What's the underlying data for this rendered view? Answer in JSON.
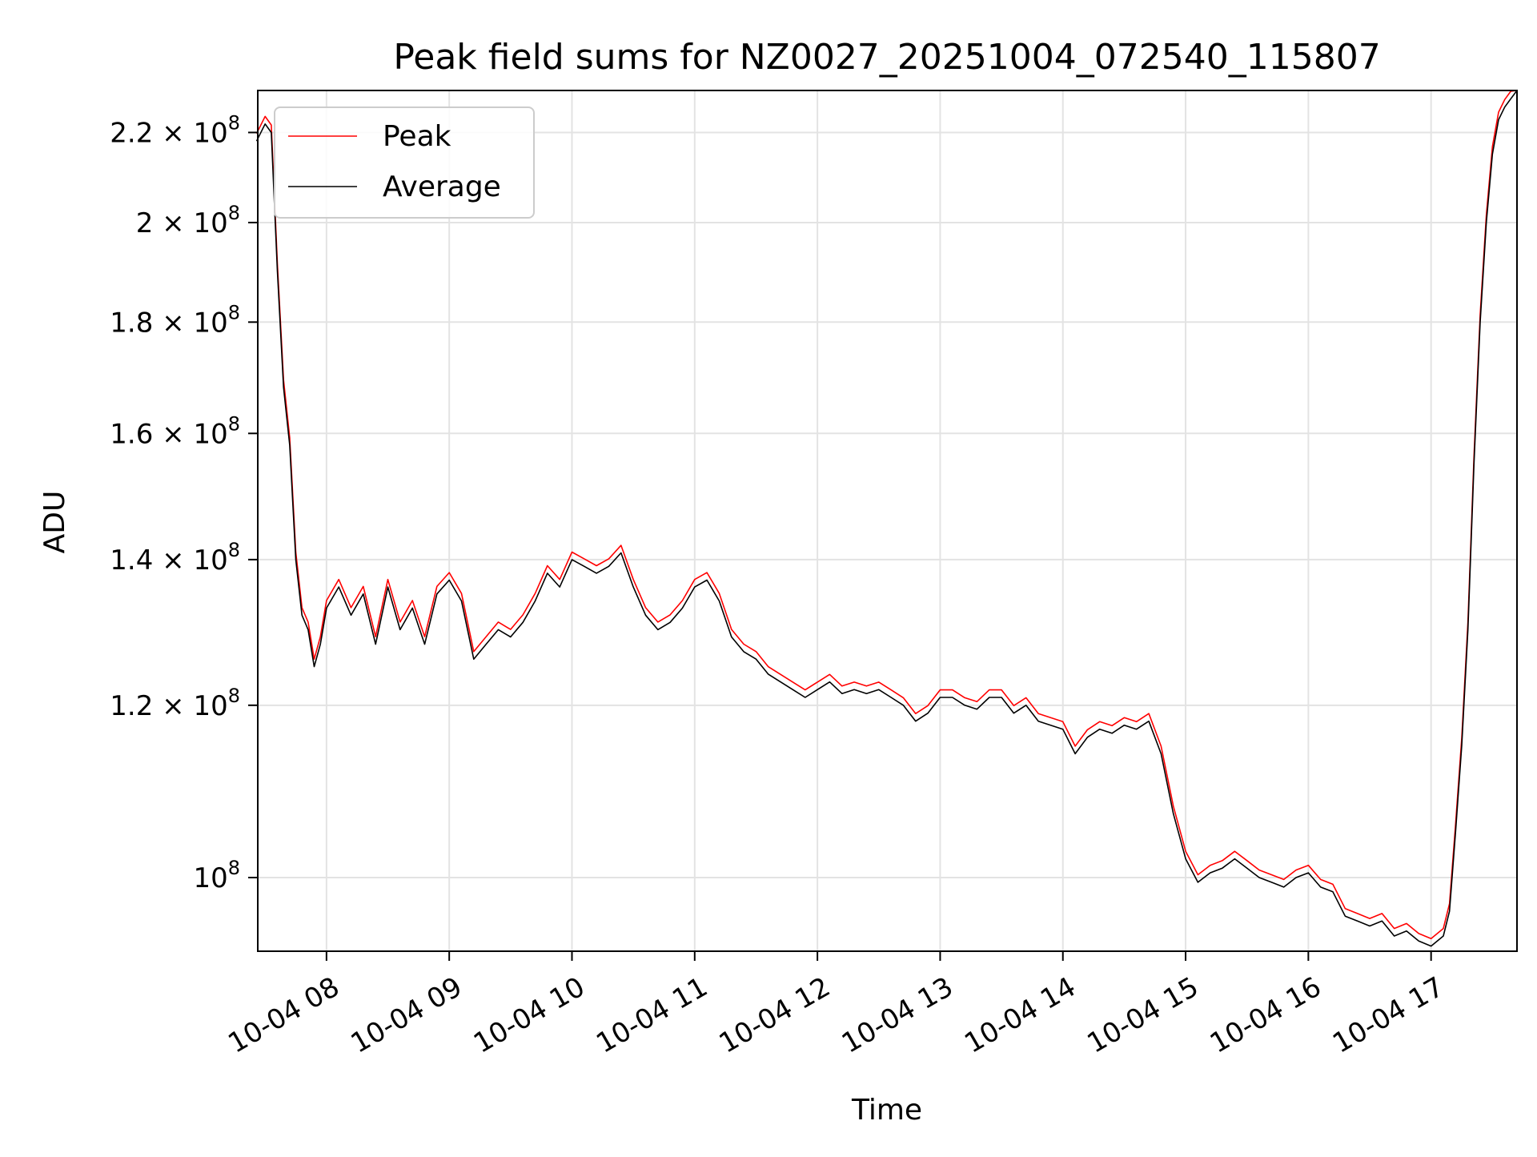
{
  "chart_data": {
    "type": "line",
    "title": "Peak field sums for NZ0027_20251004_072540_115807",
    "xlabel": "Time",
    "ylabel": "ADU",
    "yscale": "log",
    "xlim_hours": [
      7.44,
      17.7
    ],
    "ylim": [
      92500000,
      230000000
    ],
    "grid": true,
    "legend_position": "upper-left",
    "x_ticks": [
      {
        "hour": 8,
        "label": "10-04 08"
      },
      {
        "hour": 9,
        "label": "10-04 09"
      },
      {
        "hour": 10,
        "label": "10-04 10"
      },
      {
        "hour": 11,
        "label": "10-04 11"
      },
      {
        "hour": 12,
        "label": "10-04 12"
      },
      {
        "hour": 13,
        "label": "10-04 13"
      },
      {
        "hour": 14,
        "label": "10-04 14"
      },
      {
        "hour": 15,
        "label": "10-04 15"
      },
      {
        "hour": 16,
        "label": "10-04 16"
      },
      {
        "hour": 17,
        "label": "10-04 17"
      }
    ],
    "y_ticks": [
      {
        "value": 100000000,
        "mant": "",
        "exp": "8"
      },
      {
        "value": 120000000,
        "mant": "1.2",
        "exp": "8"
      },
      {
        "value": 140000000,
        "mant": "1.4",
        "exp": "8"
      },
      {
        "value": 160000000,
        "mant": "1.6",
        "exp": "8"
      },
      {
        "value": 180000000,
        "mant": "1.8",
        "exp": "8"
      },
      {
        "value": 200000000,
        "mant": "2",
        "exp": "8"
      },
      {
        "value": 220000000,
        "mant": "2.2",
        "exp": "8"
      }
    ],
    "series": [
      {
        "name": "Peak",
        "color": "#ff0000",
        "offset": 1.008
      },
      {
        "name": "Average",
        "color": "#000000",
        "offset": 1.0
      }
    ],
    "x_hours": [
      7.43,
      7.5,
      7.55,
      7.6,
      7.65,
      7.7,
      7.75,
      7.8,
      7.85,
      7.9,
      7.95,
      8.0,
      8.1,
      8.2,
      8.3,
      8.4,
      8.5,
      8.6,
      8.7,
      8.8,
      8.9,
      9.0,
      9.1,
      9.2,
      9.3,
      9.4,
      9.5,
      9.6,
      9.7,
      9.8,
      9.9,
      10.0,
      10.1,
      10.2,
      10.3,
      10.4,
      10.5,
      10.6,
      10.7,
      10.8,
      10.9,
      11.0,
      11.1,
      11.2,
      11.3,
      11.4,
      11.5,
      11.6,
      11.7,
      11.8,
      11.9,
      12.0,
      12.1,
      12.2,
      12.3,
      12.4,
      12.5,
      12.6,
      12.7,
      12.8,
      12.9,
      13.0,
      13.1,
      13.2,
      13.3,
      13.4,
      13.5,
      13.6,
      13.7,
      13.8,
      13.9,
      14.0,
      14.1,
      14.2,
      14.3,
      14.4,
      14.5,
      14.6,
      14.7,
      14.8,
      14.9,
      15.0,
      15.1,
      15.2,
      15.3,
      15.4,
      15.5,
      15.6,
      15.7,
      15.8,
      15.9,
      16.0,
      16.1,
      16.2,
      16.3,
      16.4,
      16.5,
      16.6,
      16.7,
      16.8,
      16.9,
      17.0,
      17.1,
      17.15,
      17.2,
      17.25,
      17.3,
      17.35,
      17.4,
      17.45,
      17.5,
      17.55,
      17.6,
      17.65,
      17.7
    ],
    "average_values": [
      218000000,
      222000000,
      220000000,
      190000000,
      168000000,
      158000000,
      140000000,
      132000000,
      130000000,
      125000000,
      128000000,
      133000000,
      136000000,
      132000000,
      135000000,
      128000000,
      136000000,
      130000000,
      133000000,
      128000000,
      135000000,
      137000000,
      134000000,
      126000000,
      128000000,
      130000000,
      129000000,
      131000000,
      134000000,
      138000000,
      136000000,
      140000000,
      139000000,
      138000000,
      139000000,
      141000000,
      136000000,
      132000000,
      130000000,
      131000000,
      133000000,
      136000000,
      137000000,
      134000000,
      129000000,
      127000000,
      126000000,
      124000000,
      123000000,
      122000000,
      121000000,
      122000000,
      123000000,
      121500000,
      122000000,
      121500000,
      122000000,
      121000000,
      120000000,
      118000000,
      119000000,
      121000000,
      121000000,
      120000000,
      119500000,
      121000000,
      121000000,
      119000000,
      120000000,
      118000000,
      117500000,
      117000000,
      114000000,
      116000000,
      117000000,
      116500000,
      117500000,
      117000000,
      118000000,
      114000000,
      107000000,
      102000000,
      99500000,
      100500000,
      101000000,
      102000000,
      101000000,
      100000000,
      99500000,
      99000000,
      100000000,
      100500000,
      99000000,
      98500000,
      96000000,
      95500000,
      95000000,
      95500000,
      94000000,
      94500000,
      93500000,
      93000000,
      94000000,
      96500000,
      105000000,
      115000000,
      130000000,
      155000000,
      180000000,
      200000000,
      215000000,
      223000000,
      226000000,
      228000000,
      230000000
    ]
  },
  "legend": {
    "peak_label": "Peak",
    "average_label": "Average"
  }
}
